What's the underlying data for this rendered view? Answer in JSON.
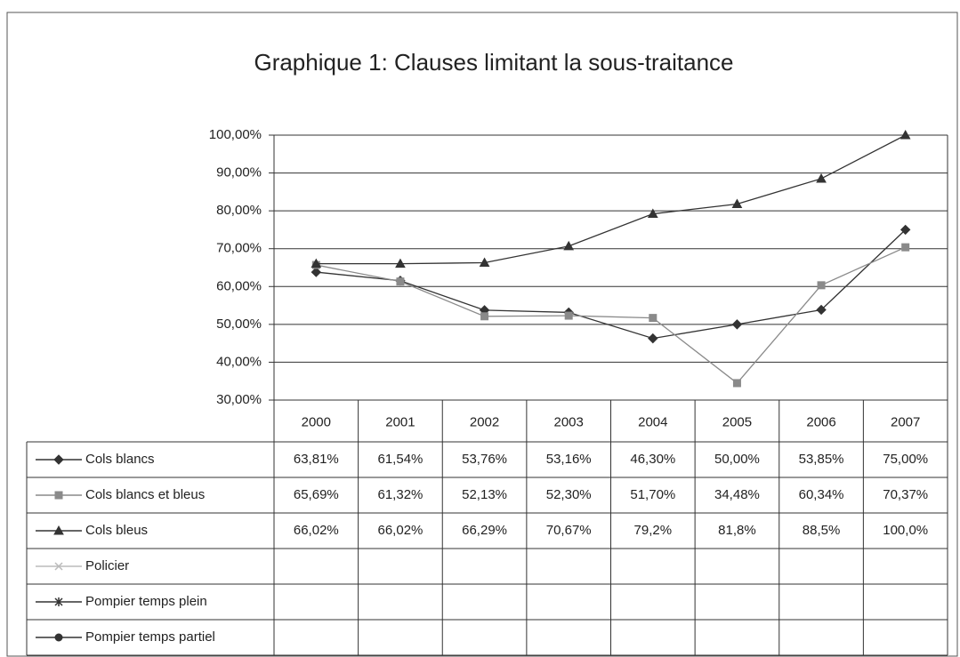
{
  "chart_data": {
    "type": "line",
    "title": "Graphique 1: Clauses limitant la sous-traitance",
    "categories": [
      "2000",
      "2001",
      "2002",
      "2003",
      "2004",
      "2005",
      "2006",
      "2007"
    ],
    "ylim": [
      30,
      100
    ],
    "yticks": [
      {
        "value": 30,
        "label": "30,00%"
      },
      {
        "value": 40,
        "label": "40,00%"
      },
      {
        "value": 50,
        "label": "50,00%"
      },
      {
        "value": 60,
        "label": "60,00%"
      },
      {
        "value": 70,
        "label": "70,00%"
      },
      {
        "value": 80,
        "label": "80,00%"
      },
      {
        "value": 90,
        "label": "90,00%"
      },
      {
        "value": 100,
        "label": "100,00%"
      }
    ],
    "grid": true,
    "series": [
      {
        "name": "Cols blancs",
        "color": "#333333",
        "marker": "diamond",
        "values": [
          63.81,
          61.54,
          53.76,
          53.16,
          46.3,
          50.0,
          53.85,
          75.0
        ],
        "value_labels": [
          "63,81%",
          "61,54%",
          "53,76%",
          "53,16%",
          "46,30%",
          "50,00%",
          "53,85%",
          "75,00%"
        ]
      },
      {
        "name": "Cols blancs et bleus",
        "color": "#8a8a8a",
        "marker": "square",
        "values": [
          65.69,
          61.32,
          52.13,
          52.3,
          51.7,
          34.48,
          60.34,
          70.37
        ],
        "value_labels": [
          "65,69%",
          "61,32%",
          "52,13%",
          "52,30%",
          "51,70%",
          "34,48%",
          "60,34%",
          "70,37%"
        ]
      },
      {
        "name": "Cols bleus",
        "color": "#333333",
        "marker": "triangle",
        "values": [
          66.02,
          66.02,
          66.29,
          70.67,
          79.2,
          81.8,
          88.5,
          100.0
        ],
        "value_labels": [
          "66,02%",
          "66,02%",
          "66,29%",
          "70,67%",
          "79,2%",
          "81,8%",
          "88,5%",
          "100,0%"
        ]
      },
      {
        "name": "Policier",
        "color": "#bbbbbb",
        "marker": "x",
        "values": [
          null,
          null,
          null,
          null,
          null,
          null,
          null,
          null
        ]
      },
      {
        "name": "Pompier temps plein",
        "color": "#333333",
        "marker": "star",
        "values": [
          null,
          null,
          null,
          null,
          null,
          null,
          null,
          null
        ]
      },
      {
        "name": "Pompier temps partiel",
        "color": "#333333",
        "marker": "circle",
        "values": [
          null,
          null,
          null,
          null,
          null,
          null,
          null,
          null
        ]
      }
    ]
  }
}
